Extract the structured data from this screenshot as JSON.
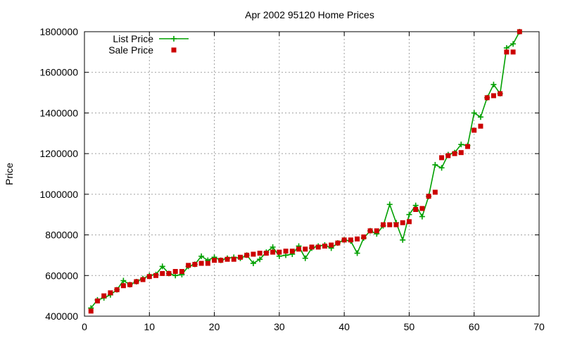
{
  "chart_data": {
    "type": "line",
    "title": "Apr 2002 95120 Home Prices",
    "xlabel": "",
    "ylabel": "Price",
    "xlim": [
      0,
      70
    ],
    "ylim": [
      400000,
      1800000
    ],
    "xticks": [
      "0",
      "10",
      "20",
      "30",
      "40",
      "50",
      "60",
      "70"
    ],
    "yticks": [
      "400000",
      "600000",
      "800000",
      "1000000",
      "1200000",
      "1400000",
      "1600000",
      "1800000"
    ],
    "grid": true,
    "legend_position": "top-left",
    "series": [
      {
        "name": "List Price",
        "style": "line-plus",
        "color": "#00a000",
        "x": [
          1,
          2,
          3,
          4,
          5,
          6,
          7,
          8,
          9,
          10,
          11,
          12,
          13,
          14,
          15,
          16,
          17,
          18,
          19,
          20,
          21,
          22,
          23,
          24,
          25,
          26,
          27,
          28,
          29,
          30,
          31,
          32,
          33,
          34,
          35,
          36,
          37,
          38,
          39,
          40,
          41,
          42,
          43,
          44,
          45,
          46,
          47,
          48,
          49,
          50,
          51,
          52,
          53,
          54,
          55,
          56,
          57,
          58,
          59,
          60,
          61,
          62,
          63,
          64,
          65,
          66,
          67
        ],
        "values": [
          440000,
          480000,
          490000,
          505000,
          530000,
          575000,
          555000,
          570000,
          585000,
          600000,
          605000,
          645000,
          610000,
          600000,
          605000,
          645000,
          655000,
          695000,
          675000,
          690000,
          675000,
          685000,
          690000,
          685000,
          700000,
          660000,
          680000,
          715000,
          740000,
          695000,
          700000,
          705000,
          745000,
          685000,
          735000,
          745000,
          750000,
          735000,
          760000,
          775000,
          770000,
          710000,
          785000,
          820000,
          805000,
          845000,
          950000,
          860000,
          775000,
          900000,
          945000,
          890000,
          990000,
          1145000,
          1130000,
          1195000,
          1205000,
          1245000,
          1240000,
          1400000,
          1380000,
          1475000,
          1540000,
          1495000,
          1720000,
          1740000,
          1800000
        ]
      },
      {
        "name": "Sale Price",
        "style": "points-square",
        "color": "#cc0000",
        "x": [
          1,
          2,
          3,
          4,
          5,
          6,
          7,
          8,
          9,
          10,
          11,
          12,
          13,
          14,
          15,
          16,
          17,
          18,
          19,
          20,
          21,
          22,
          23,
          24,
          25,
          26,
          27,
          28,
          29,
          30,
          31,
          32,
          33,
          34,
          35,
          36,
          37,
          38,
          39,
          40,
          41,
          42,
          43,
          44,
          45,
          46,
          47,
          48,
          49,
          50,
          51,
          52,
          53,
          54,
          55,
          56,
          57,
          58,
          59,
          60,
          61,
          62,
          63,
          64,
          65,
          66,
          67
        ],
        "values": [
          425000,
          475000,
          500000,
          515000,
          530000,
          550000,
          555000,
          570000,
          580000,
          595000,
          600000,
          610000,
          610000,
          620000,
          620000,
          650000,
          655000,
          660000,
          660000,
          675000,
          675000,
          680000,
          680000,
          690000,
          700000,
          705000,
          710000,
          710000,
          715000,
          715000,
          720000,
          720000,
          730000,
          730000,
          740000,
          740000,
          745000,
          750000,
          760000,
          775000,
          775000,
          780000,
          790000,
          820000,
          820000,
          850000,
          850000,
          850000,
          860000,
          865000,
          925000,
          930000,
          990000,
          1010000,
          1180000,
          1190000,
          1200000,
          1205000,
          1235000,
          1315000,
          1335000,
          1475000,
          1485000,
          1495000,
          1700000,
          1700000,
          1800000
        ]
      }
    ]
  }
}
